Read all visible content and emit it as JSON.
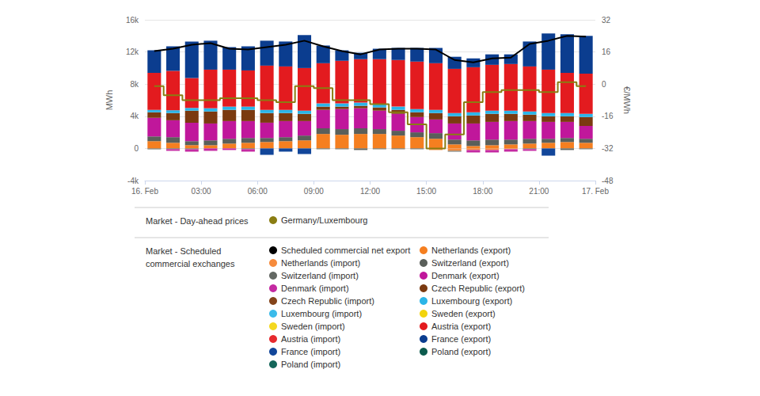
{
  "chart_data": {
    "type": "bar",
    "stacked": true,
    "grid": true,
    "x": [
      0.5,
      1.5,
      2.5,
      3.5,
      4.5,
      5.5,
      6.5,
      7.5,
      8.5,
      9.5,
      10.5,
      11.5,
      12.5,
      13.5,
      14.5,
      15.5,
      16.5,
      17.5,
      18.5,
      19.5,
      20.5,
      21.5,
      22.5,
      23.5
    ],
    "xlim": [
      0,
      24
    ],
    "xticks": [
      {
        "value": 0,
        "label": "16. Feb"
      },
      {
        "value": 3,
        "label": "03:00"
      },
      {
        "value": 6,
        "label": "06:00"
      },
      {
        "value": 9,
        "label": "09:00"
      },
      {
        "value": 12,
        "label": "12:00"
      },
      {
        "value": 15,
        "label": "15:00"
      },
      {
        "value": 18,
        "label": "18:00"
      },
      {
        "value": 21,
        "label": "21:00"
      },
      {
        "value": 24,
        "label": "17. Feb"
      }
    ],
    "ylabel": "MWh",
    "ylim": [
      -4000,
      16000
    ],
    "yticks": [
      {
        "value": -4000,
        "label": "-4k"
      },
      0,
      {
        "value": 4000,
        "label": "4k"
      },
      {
        "value": 8000,
        "label": "8k"
      },
      {
        "value": 12000,
        "label": "12k"
      },
      {
        "value": 16000,
        "label": "16k"
      }
    ],
    "y2label": "€/MWh",
    "y2lim": [
      -48,
      32
    ],
    "y2ticks": [
      -48,
      -32,
      -16,
      0,
      16,
      32
    ],
    "series": [
      {
        "name": "Germany/Luxembourg",
        "group": "Market - Day-ahead prices",
        "type": "line",
        "line_style": "step",
        "axis": "y2",
        "color": "#8a7d12",
        "values": [
          -1,
          -5.5,
          -8,
          -8,
          -7,
          -7,
          -8,
          -9,
          -1,
          -2,
          -8,
          -8,
          -10,
          -14,
          -20,
          -32,
          -25,
          -9,
          -4,
          -3,
          -3,
          -4,
          1,
          -1
        ]
      },
      {
        "name": "Scheduled commercial net export",
        "group": "Market - Scheduled commercial exchanges",
        "type": "line",
        "line_style": "solid",
        "color": "#000000",
        "values": [
          12100,
          12400,
          12900,
          13100,
          12400,
          12300,
          12600,
          12900,
          13400,
          12700,
          12100,
          11700,
          12300,
          12400,
          12400,
          12300,
          11000,
          10700,
          11200,
          11300,
          13000,
          13400,
          14000,
          13900
        ]
      },
      {
        "name": "Netherlands (export)",
        "group": "Market - Scheduled commercial exchanges",
        "color": "#f57f20",
        "values": [
          900,
          700,
          400,
          400,
          600,
          700,
          800,
          900,
          1000,
          1800,
          1700,
          1800,
          1800,
          1600,
          1400,
          1200,
          500,
          300,
          400,
          500,
          600,
          700,
          800,
          700
        ]
      },
      {
        "name": "Netherlands (import)",
        "group": "Market - Scheduled commercial exchanges",
        "color": "#f68b3c",
        "values": [
          0,
          0,
          0,
          0,
          0,
          0,
          0,
          0,
          0,
          0,
          0,
          0,
          0,
          0,
          0,
          -200,
          -300,
          -200,
          -200,
          -100,
          0,
          0,
          0,
          0
        ]
      },
      {
        "name": "Switzerland (export)",
        "group": "Market - Scheduled commercial exchanges",
        "color": "#5a5f5a",
        "values": [
          600,
          700,
          500,
          600,
          600,
          600,
          500,
          500,
          600,
          700,
          700,
          700,
          600,
          600,
          600,
          700,
          600,
          700,
          700,
          600,
          600,
          500,
          500,
          500
        ]
      },
      {
        "name": "Switzerland (import)",
        "group": "Market - Scheduled commercial exchanges",
        "color": "#636863",
        "values": [
          -100,
          -100,
          -100,
          0,
          0,
          -100,
          0,
          0,
          0,
          -100,
          -100,
          -200,
          -100,
          -100,
          -100,
          0,
          -100,
          0,
          0,
          0,
          -100,
          0,
          -200,
          -100
        ]
      },
      {
        "name": "Denmark (export)",
        "group": "Market - Scheduled commercial exchanges",
        "color": "#c0179b",
        "values": [
          2300,
          2100,
          2300,
          2100,
          2200,
          2100,
          1900,
          2000,
          1800,
          2300,
          2500,
          2500,
          2300,
          2100,
          1900,
          1700,
          2000,
          2100,
          2200,
          2300,
          2200,
          2100,
          2000,
          1600
        ]
      },
      {
        "name": "Denmark (import)",
        "group": "Market - Scheduled commercial exchanges",
        "color": "#c42aa2",
        "values": [
          0,
          -200,
          -300,
          -300,
          -200,
          -300,
          0,
          0,
          0,
          0,
          0,
          0,
          0,
          0,
          0,
          0,
          0,
          -300,
          -300,
          -300,
          -200,
          0,
          0,
          0
        ]
      },
      {
        "name": "Czech Republic (export)",
        "group": "Market - Scheduled commercial exchanges",
        "color": "#7b3a10",
        "values": [
          700,
          900,
          1500,
          1500,
          1400,
          1400,
          1200,
          1000,
          900,
          400,
          300,
          300,
          400,
          500,
          600,
          800,
          900,
          1000,
          1000,
          900,
          800,
          700,
          700,
          1100
        ]
      },
      {
        "name": "Czech Republic (import)",
        "group": "Market - Scheduled commercial exchanges",
        "color": "#84441a",
        "values": [
          0,
          0,
          0,
          0,
          0,
          0,
          0,
          0,
          0,
          0,
          0,
          0,
          0,
          0,
          0,
          0,
          0,
          0,
          0,
          0,
          0,
          0,
          0,
          0
        ]
      },
      {
        "name": "Luxembourg (export)",
        "group": "Market - Scheduled commercial exchanges",
        "color": "#2bb5e8",
        "values": [
          300,
          350,
          350,
          400,
          400,
          400,
          400,
          400,
          400,
          400,
          400,
          400,
          400,
          400,
          400,
          400,
          400,
          400,
          400,
          400,
          400,
          400,
          400,
          400
        ]
      },
      {
        "name": "Luxembourg (import)",
        "group": "Market - Scheduled commercial exchanges",
        "color": "#3bbbea",
        "values": [
          0,
          0,
          0,
          0,
          0,
          0,
          0,
          0,
          0,
          0,
          0,
          0,
          0,
          0,
          0,
          0,
          0,
          0,
          0,
          0,
          0,
          0,
          0,
          0
        ]
      },
      {
        "name": "Sweden (export)",
        "group": "Market - Scheduled commercial exchanges",
        "color": "#f2d40c",
        "values": [
          0,
          0,
          0,
          0,
          0,
          0,
          0,
          0,
          0,
          0,
          0,
          0,
          0,
          0,
          0,
          0,
          0,
          0,
          0,
          0,
          0,
          0,
          0,
          0
        ]
      },
      {
        "name": "Sweden (import)",
        "group": "Market - Scheduled commercial exchanges",
        "color": "#f4d820",
        "values": [
          0,
          0,
          0,
          0,
          0,
          0,
          0,
          0,
          0,
          0,
          0,
          0,
          0,
          0,
          0,
          0,
          0,
          0,
          0,
          0,
          0,
          0,
          0,
          0
        ]
      },
      {
        "name": "Austria (export)",
        "group": "Market - Scheduled commercial exchanges",
        "color": "#e31b1f",
        "values": [
          4600,
          4900,
          3700,
          4800,
          4600,
          4500,
          5500,
          5400,
          5300,
          5000,
          5300,
          5400,
          5600,
          5800,
          5900,
          5800,
          5500,
          5600,
          5700,
          5800,
          5600,
          5400,
          5000,
          5000
        ]
      },
      {
        "name": "Austria (import)",
        "group": "Market - Scheduled commercial exchanges",
        "color": "#e62a2e",
        "values": [
          0,
          0,
          0,
          0,
          0,
          0,
          0,
          0,
          0,
          0,
          0,
          0,
          0,
          0,
          0,
          0,
          0,
          0,
          0,
          0,
          0,
          0,
          0,
          0
        ]
      },
      {
        "name": "France (export)",
        "group": "Market - Scheduled commercial exchanges",
        "color": "#0b3d8f",
        "values": [
          2800,
          3050,
          4550,
          3600,
          2800,
          3000,
          3100,
          3100,
          4100,
          2200,
          1300,
          800,
          1300,
          1500,
          1700,
          1900,
          1500,
          1100,
          1300,
          1200,
          3100,
          4500,
          4800,
          4700
        ]
      },
      {
        "name": "France (import)",
        "group": "Market - Scheduled commercial exchanges",
        "color": "#12469a",
        "values": [
          0,
          0,
          0,
          0,
          0,
          0,
          -800,
          -400,
          -700,
          0,
          0,
          0,
          0,
          0,
          0,
          0,
          0,
          0,
          0,
          0,
          0,
          -900,
          0,
          0
        ]
      },
      {
        "name": "Poland (export)",
        "group": "Market - Scheduled commercial exchanges",
        "color": "#0c5b4e",
        "values": [
          0,
          0,
          0,
          0,
          0,
          0,
          0,
          0,
          0,
          0,
          0,
          0,
          0,
          0,
          0,
          0,
          0,
          0,
          0,
          0,
          0,
          0,
          0,
          0
        ]
      },
      {
        "name": "Poland (import)",
        "group": "Market - Scheduled commercial exchanges",
        "color": "#14665a",
        "values": [
          0,
          0,
          0,
          0,
          0,
          0,
          0,
          0,
          0,
          0,
          0,
          0,
          0,
          0,
          0,
          0,
          0,
          0,
          0,
          0,
          0,
          0,
          0,
          0
        ]
      }
    ]
  }
}
